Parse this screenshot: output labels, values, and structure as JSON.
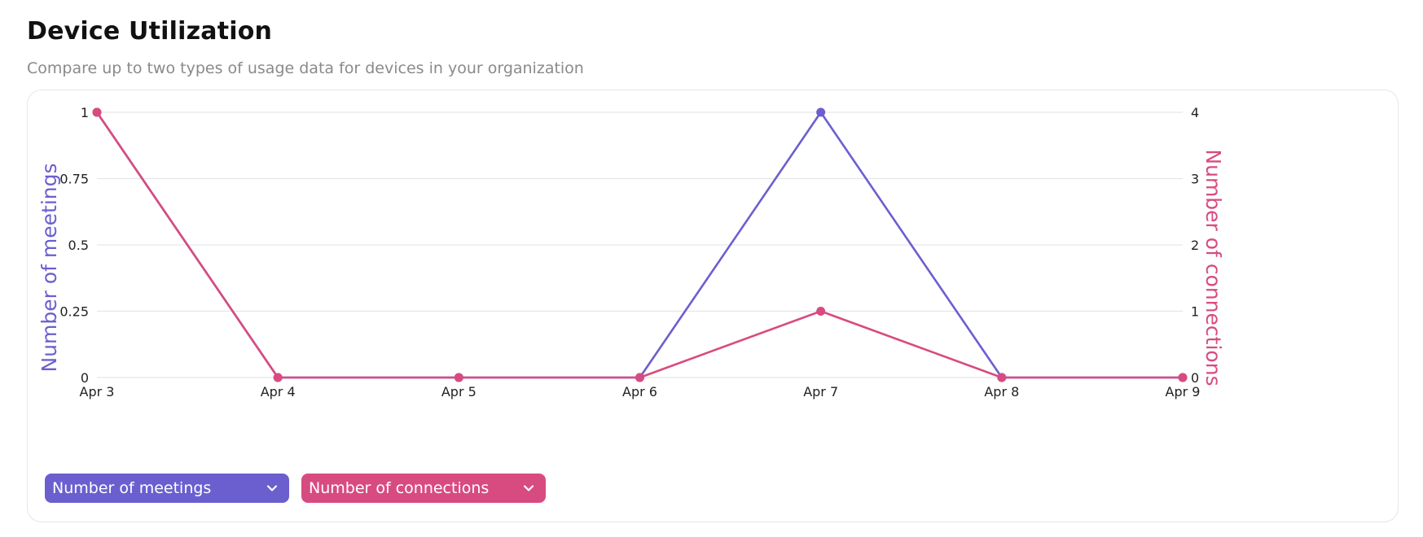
{
  "header": {
    "title": "Device Utilization",
    "subtitle": "Compare up to two types of usage data for devices in your organization"
  },
  "colors": {
    "meetings": "#6b5fcf",
    "connections": "#d84b80",
    "grid": "#e6e6ea"
  },
  "selectors": {
    "left_label": "Number of meetings",
    "right_label": "Number of connections",
    "left_icon": "chevron-down-icon",
    "right_icon": "chevron-down-icon"
  },
  "chart_data": {
    "type": "line",
    "title": "",
    "x": [
      "Apr 3",
      "Apr 4",
      "Apr 5",
      "Apr 6",
      "Apr 7",
      "Apr 8",
      "Apr 9"
    ],
    "y_left": {
      "label": "Number of meetings",
      "lim": [
        0,
        1
      ],
      "ticks": [
        "0",
        "0.25",
        "0.5",
        "0.75",
        "1"
      ],
      "tick_values": [
        0,
        0.25,
        0.5,
        0.75,
        1
      ]
    },
    "y_right": {
      "label": "Number of connections",
      "lim": [
        0,
        4
      ],
      "ticks": [
        "0",
        "1",
        "2",
        "3",
        "4"
      ],
      "tick_values": [
        0,
        1,
        2,
        3,
        4
      ]
    },
    "series": [
      {
        "name": "Number of meetings",
        "axis": "left",
        "values": [
          1,
          0,
          0,
          0,
          1,
          0,
          0
        ]
      },
      {
        "name": "Number of connections",
        "axis": "right",
        "values": [
          4,
          0,
          0,
          0,
          1,
          0,
          0
        ]
      }
    ],
    "grid": true,
    "legend": "bottom-left"
  }
}
